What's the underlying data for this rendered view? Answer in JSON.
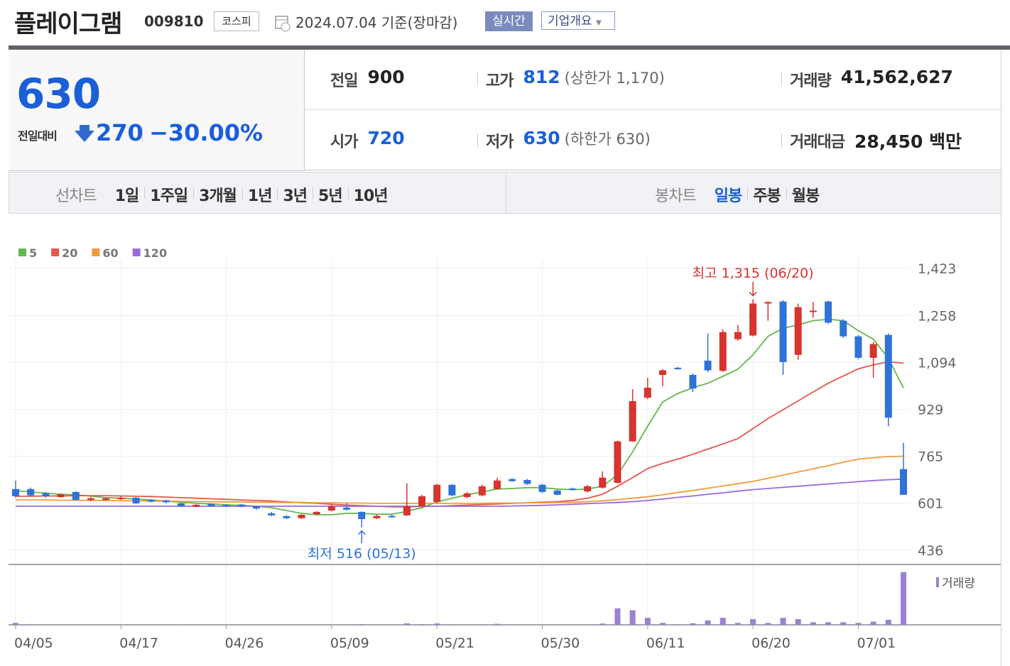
{
  "header": {
    "name": "플레이그램",
    "code": "009810",
    "market": "코스피",
    "date": "2024.07.04 기준(장마감)",
    "realtime": "실시간",
    "company": "기업개요"
  },
  "summary": {
    "price": "630",
    "change_label": "전일대비",
    "change": "270",
    "change_rate": "−30.00%",
    "stats": [
      {
        "label": "전일",
        "value": "900"
      },
      {
        "label": "고가",
        "value": "812",
        "note": "(상한가 1,170)"
      },
      {
        "label": "거래량",
        "value": "41,562,627"
      },
      {
        "label": "시가",
        "value": "720"
      },
      {
        "label": "저가",
        "value": "630",
        "note": "(하한가 630)"
      },
      {
        "label": "거래대금",
        "value": "28,450 백만"
      }
    ]
  },
  "tabs": {
    "line_label": "선차트",
    "line": [
      "1일",
      "1주일",
      "3개월",
      "1년",
      "3년",
      "5년",
      "10년"
    ],
    "candle_label": "봉차트",
    "candle": [
      "일봉",
      "주봉",
      "월봉"
    ],
    "selected_candle": 0
  },
  "chart_data": {
    "type": "candlestick",
    "categories": [
      "04/05",
      null,
      null,
      null,
      null,
      null,
      null,
      "04/17",
      null,
      null,
      null,
      null,
      null,
      null,
      "04/26",
      null,
      null,
      null,
      null,
      null,
      null,
      "05/09",
      null,
      null,
      null,
      null,
      null,
      null,
      "05/21",
      null,
      null,
      null,
      null,
      null,
      null,
      "05/30",
      null,
      null,
      null,
      null,
      null,
      null,
      "06/11",
      null,
      null,
      null,
      null,
      null,
      null,
      "06/20",
      null,
      null,
      null,
      null,
      null,
      null,
      "07/01",
      null,
      null,
      null
    ],
    "open": [
      650,
      650,
      635,
      622,
      640,
      612,
      612,
      615,
      620,
      612,
      610,
      600,
      588,
      598,
      595,
      596,
      590,
      565,
      555,
      548,
      562,
      575,
      585,
      570,
      548,
      556,
      558,
      590,
      605,
      665,
      622,
      628,
      650,
      685,
      682,
      665,
      645,
      652,
      642,
      655,
      672,
      817,
      970,
      1050,
      1075,
      1050,
      1100,
      1064,
      1175,
      1188,
      1300,
      1307,
      1120,
      1270,
      1307,
      1240,
      1185,
      1110,
      1190,
      720
    ],
    "high": [
      680,
      655,
      640,
      635,
      642,
      622,
      620,
      625,
      622,
      614,
      612,
      602,
      598,
      600,
      597,
      598,
      592,
      570,
      558,
      562,
      573,
      595,
      600,
      572,
      560,
      560,
      670,
      630,
      668,
      668,
      640,
      665,
      690,
      688,
      685,
      668,
      648,
      655,
      664,
      712,
      820,
      1000,
      1040,
      1070,
      1078,
      1055,
      1195,
      1210,
      1225,
      1315,
      1308,
      1312,
      1300,
      1305,
      1310,
      1245,
      1190,
      1165,
      1195,
      812
    ],
    "low": [
      620,
      625,
      620,
      620,
      610,
      608,
      610,
      612,
      598,
      604,
      600,
      588,
      586,
      588,
      588,
      586,
      578,
      555,
      545,
      546,
      560,
      572,
      575,
      516,
      545,
      550,
      556,
      588,
      602,
      625,
      618,
      625,
      648,
      675,
      665,
      636,
      628,
      645,
      638,
      652,
      670,
      815,
      965,
      1010,
      1068,
      990,
      1060,
      1060,
      1170,
      1185,
      1240,
      1050,
      1103,
      1250,
      1228,
      1180,
      1105,
      1040,
      870,
      630
    ],
    "close": [
      625,
      628,
      625,
      632,
      612,
      618,
      618,
      620,
      600,
      606,
      604,
      590,
      595,
      590,
      590,
      590,
      582,
      558,
      548,
      560,
      570,
      590,
      578,
      545,
      556,
      552,
      590,
      625,
      665,
      628,
      635,
      660,
      680,
      678,
      668,
      640,
      630,
      648,
      660,
      690,
      817,
      958,
      1005,
      1066,
      1070,
      1002,
      1066,
      1200,
      1200,
      1300,
      1305,
      1095,
      1287,
      1275,
      1233,
      1185,
      1110,
      1158,
      900,
      630
    ],
    "up_color": "#d7332f",
    "down_color": "#2f72d8",
    "series": [
      {
        "name": "5",
        "color": "#63b84b",
        "values": [
          645,
          640,
          636,
          632,
          630,
          625,
          620,
          618,
          615,
          612,
          608,
          604,
          600,
          598,
          595,
          593,
          590,
          585,
          575,
          565,
          560,
          560,
          565,
          565,
          562,
          562,
          572,
          585,
          605,
          618,
          630,
          640,
          650,
          652,
          655,
          655,
          650,
          648,
          650,
          660,
          700,
          780,
          870,
          955,
          985,
          1005,
          1021,
          1045,
          1070,
          1120,
          1185,
          1213,
          1225,
          1240,
          1245,
          1240,
          1205,
          1175,
          1108,
          1004
        ]
      },
      {
        "name": "20",
        "color": "#e3574d",
        "values": [
          625,
          625,
          626,
          626,
          627,
          627,
          627,
          626,
          625,
          624,
          622,
          620,
          618,
          616,
          614,
          612,
          610,
          608,
          605,
          602,
          600,
          597,
          594,
          592,
          590,
          588,
          588,
          589,
          590,
          592,
          594,
          596,
          598,
          600,
          602,
          604,
          606,
          610,
          618,
          632,
          660,
          690,
          722,
          740,
          755,
          772,
          790,
          808,
          827,
          862,
          897,
          928,
          959,
          990,
          1021,
          1046,
          1071,
          1085,
          1096,
          1091
        ]
      },
      {
        "name": "60",
        "color": "#f19b3c",
        "values": [
          612,
          612,
          612,
          611,
          611,
          610,
          610,
          609,
          609,
          608,
          608,
          607,
          606,
          606,
          605,
          605,
          604,
          604,
          603,
          603,
          602,
          602,
          601,
          601,
          600,
          600,
          600,
          600,
          600,
          600,
          600,
          600,
          601,
          601,
          602,
          602,
          603,
          604,
          606,
          609,
          613,
          618,
          623,
          630,
          638,
          645,
          653,
          661,
          669,
          677,
          688,
          699,
          710,
          721,
          732,
          744,
          755,
          760,
          764,
          765
        ]
      },
      {
        "name": "120",
        "color": "#9a6bdb",
        "values": [
          590,
          590,
          590,
          590,
          590,
          590,
          590,
          590,
          590,
          590,
          590,
          590,
          590,
          590,
          590,
          590,
          590,
          590,
          590,
          590,
          590,
          590,
          590,
          590,
          590,
          590,
          590,
          590,
          590,
          590,
          590,
          590,
          590,
          591,
          592,
          593,
          595,
          597,
          599,
          601,
          603,
          606,
          610,
          615,
          621,
          626,
          632,
          637,
          643,
          648,
          652,
          656,
          660,
          664,
          668,
          672,
          676,
          680,
          683,
          685
        ]
      }
    ],
    "volume": {
      "name": "거래량",
      "color": "#9a82d2",
      "values": [
        1500000,
        400000,
        300000,
        250000,
        300000,
        200000,
        200000,
        200000,
        250000,
        200000,
        200000,
        250000,
        200000,
        200000,
        200000,
        200000,
        250000,
        300000,
        300000,
        250000,
        250000,
        300000,
        300000,
        600000,
        300000,
        250000,
        1200000,
        600000,
        1100000,
        400000,
        300000,
        400000,
        800000,
        300000,
        300000,
        300000,
        250000,
        200000,
        300000,
        1000000,
        13000000,
        11500000,
        5500000,
        1500000,
        500000,
        1200000,
        3500000,
        5500000,
        1500000,
        4500000,
        1500000,
        5500000,
        4500000,
        2000000,
        2000000,
        2000000,
        1500000,
        2500000,
        4000000,
        41562627
      ]
    },
    "volume_ylim": [
      0,
      42000000
    ],
    "ylim": [
      386,
      1423
    ],
    "yticks": [
      {
        "value": 436,
        "label": "436"
      },
      {
        "value": 601,
        "label": "601"
      },
      {
        "value": 765,
        "label": "765"
      },
      {
        "value": 929,
        "label": "929"
      },
      {
        "value": 1094,
        "label": "1,094"
      },
      {
        "value": 1258,
        "label": "1,258"
      },
      {
        "value": 1423,
        "label": "1,423"
      }
    ],
    "high_label": "최고 1,315 (06/20)",
    "low_label": "최저 516 (05/13)",
    "grid": true
  }
}
